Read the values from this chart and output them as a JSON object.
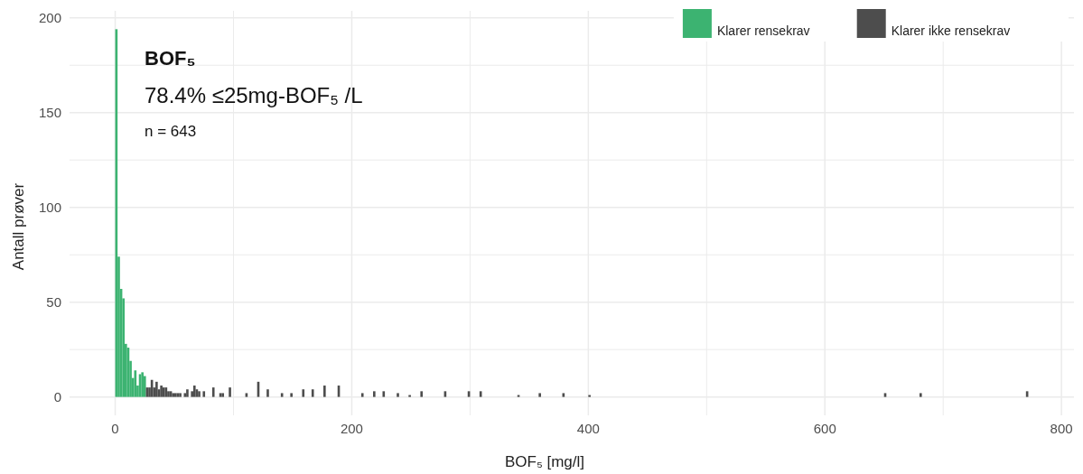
{
  "chart_data": {
    "type": "histogram",
    "xlabel": "BOF₅ [mg/l]",
    "ylabel": "Antall prøver",
    "annotations": [
      "BOF₅",
      "78.4% ≤25mg-BOF₅ /L",
      "n = 643"
    ],
    "bins": [
      0,
      2,
      4,
      6,
      8,
      10,
      12,
      14,
      16,
      18,
      20,
      22,
      24,
      26,
      28,
      30,
      32,
      34,
      36,
      38,
      40,
      42,
      44,
      46,
      48,
      50,
      52,
      54,
      56,
      58,
      60,
      62,
      64,
      66,
      68,
      70,
      72,
      74,
      76,
      82,
      84,
      88,
      90,
      92,
      96,
      98,
      110,
      112,
      120,
      122,
      128,
      130,
      140,
      142,
      148,
      150,
      158,
      160,
      166,
      168,
      176,
      178,
      188,
      190,
      208,
      210,
      218,
      220,
      226,
      228,
      238,
      240,
      248,
      250,
      258,
      260,
      278,
      280,
      298,
      300,
      308,
      310,
      340,
      342,
      358,
      360,
      378,
      380,
      400,
      402,
      650,
      652,
      680,
      682,
      770,
      772
    ],
    "series": [
      {
        "name": "Klarer rensekrav",
        "color": "#3cb371",
        "values": [
          194,
          74,
          57,
          52,
          28,
          26,
          19,
          10,
          14,
          6,
          12,
          13,
          11,
          null,
          null,
          null,
          null,
          null,
          null,
          null,
          null,
          null,
          null,
          null,
          null,
          null,
          null,
          null,
          null,
          null,
          null,
          null,
          null,
          null,
          null,
          null,
          null,
          null,
          null,
          null,
          null,
          null,
          null,
          null,
          null,
          null,
          null,
          null,
          null,
          null,
          null,
          null,
          null,
          null,
          null,
          null,
          null,
          null,
          null,
          null,
          null,
          null,
          null,
          null,
          null,
          null,
          null,
          null,
          null,
          null,
          null,
          null,
          null,
          null,
          null,
          null,
          null,
          null,
          null,
          null,
          null,
          null,
          null,
          null,
          null,
          null,
          null,
          null,
          null,
          null,
          null,
          null,
          null,
          null,
          null
        ]
      },
      {
        "name": "Klarer ikke rensekrav",
        "color": "#4d4d4d",
        "values": [
          null,
          null,
          null,
          null,
          null,
          null,
          null,
          null,
          null,
          null,
          null,
          null,
          null,
          5,
          5,
          9,
          5,
          8,
          4,
          6,
          5,
          5,
          3,
          3,
          2,
          2,
          2,
          2,
          0,
          2,
          4,
          0,
          3,
          6,
          4,
          3,
          0,
          3,
          0,
          5,
          0,
          2,
          2,
          0,
          5,
          0,
          2,
          0,
          8,
          0,
          4,
          0,
          2,
          0,
          2,
          0,
          4,
          0,
          4,
          0,
          6,
          0,
          6,
          0,
          2,
          0,
          3,
          0,
          3,
          0,
          2,
          0,
          1,
          0,
          3,
          0,
          3,
          0,
          3,
          0,
          3,
          0,
          1,
          0,
          2,
          0,
          2,
          0,
          1,
          0,
          2,
          0,
          2,
          0,
          3
        ]
      }
    ],
    "xlim": [
      -38.6,
      810.6
    ],
    "xticks": [
      0,
      {
        "value": 100,
        "label": null
      },
      200,
      {
        "value": 300,
        "label": null
      },
      400,
      {
        "value": 500,
        "label": null
      },
      600,
      {
        "value": 700,
        "label": null
      },
      800
    ],
    "ylim": [
      -9.7,
      203.7
    ],
    "yticks": [
      0,
      {
        "value": 25,
        "label": null
      },
      50,
      {
        "value": 75,
        "label": null
      },
      100,
      {
        "value": 125,
        "label": null
      },
      150,
      {
        "value": 175,
        "label": null
      },
      200
    ],
    "grid": true,
    "legend": "top right"
  }
}
